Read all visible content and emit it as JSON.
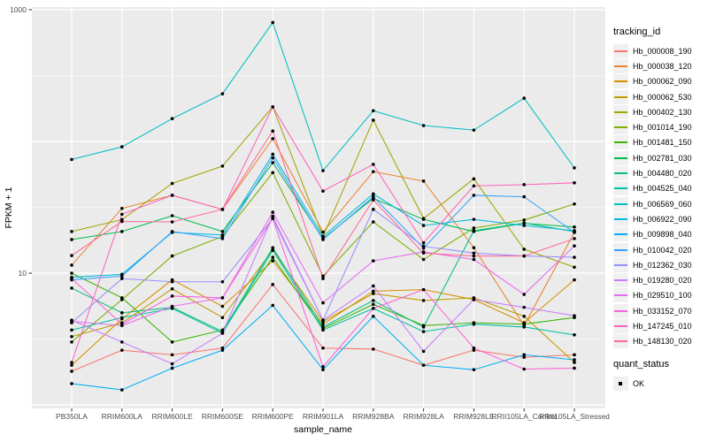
{
  "chart_data": {
    "type": "line",
    "title": "",
    "xlabel": "sample_name",
    "ylabel": "FPKM + 1",
    "yscale": "log10",
    "ylim": [
      1,
      1000
    ],
    "yticks": [
      {
        "value": 1000,
        "label": "1000"
      },
      {
        "value": 10,
        "label": "10"
      }
    ],
    "grid": "white major and minor gridlines on gray panel",
    "panel_bg": "#EBEBEB",
    "gridline_color": "#FFFFFF",
    "tick_color": "#333333",
    "tick_label_color": "#4D4D4D",
    "point_color": "#000000",
    "legend_position": "right",
    "legend_title": "tracking_id",
    "quant_legend": {
      "title": "quant_status",
      "items": [
        "OK"
      ]
    },
    "x": [
      "PB350LA",
      "RRIM600LA",
      "RRIM600LE",
      "RRIM600SE",
      "RRIM600PE",
      "RRIM901LA",
      "RRIM928BA",
      "RRIM928LA",
      "RRIM928LE",
      "RRII105LA_Control",
      "RRII105LA_Stressed"
    ],
    "series": [
      {
        "name": "Hb_000008_190",
        "color": "#F8766D",
        "values": [
          1.8,
          2.6,
          2.4,
          2.7,
          8.2,
          2.7,
          2.65,
          2.0,
          2.6,
          2.3,
          2.4
        ]
      },
      {
        "name": "Hb_000038_120",
        "color": "#EA8331",
        "values": [
          11.5,
          31,
          39,
          30.5,
          105,
          20.5,
          59,
          50,
          15.6,
          4.0,
          20.4
        ]
      },
      {
        "name": "Hb_000062_090",
        "color": "#D89000",
        "values": [
          2.0,
          4.5,
          8.9,
          5.6,
          12.4,
          4.1,
          7.3,
          7.5,
          6.3,
          4.2,
          8.9
        ]
      },
      {
        "name": "Hb_000062_530",
        "color": "#C09B00",
        "values": [
          3.3,
          4.2,
          7.6,
          4.6,
          15,
          4.3,
          7.0,
          6.2,
          6.5,
          4.7,
          2.1
        ]
      },
      {
        "name": "Hb_000402_130",
        "color": "#A3A500",
        "values": [
          20.7,
          25.5,
          48,
          65,
          183,
          19,
          145,
          26,
          52,
          15.2,
          11.1
        ]
      },
      {
        "name": "Hb_001014_190",
        "color": "#7CAE00",
        "values": [
          3.0,
          6.3,
          13.5,
          19,
          58,
          9.5,
          24.5,
          12.7,
          22,
          25.3,
          33.5
        ]
      },
      {
        "name": "Hb_001481_150",
        "color": "#39B600",
        "values": [
          10,
          6.5,
          3.0,
          3.7,
          13.2,
          3.8,
          5.8,
          4.0,
          4.2,
          4.1,
          4.6
        ]
      },
      {
        "name": "Hb_002781_030",
        "color": "#00BB4E",
        "values": [
          18,
          20.7,
          27.3,
          20.7,
          69,
          18.3,
          37,
          25.6,
          20.7,
          23.9,
          22.4
        ]
      },
      {
        "name": "Hb_004480_020",
        "color": "#00BF7D",
        "values": [
          7.7,
          5.0,
          5.5,
          3.6,
          15.6,
          3.9,
          6.2,
          3.9,
          21,
          24,
          20.7
        ]
      },
      {
        "name": "Hb_004525_040",
        "color": "#00C1A3",
        "values": [
          3.7,
          4.6,
          5.4,
          3.5,
          14.9,
          3.7,
          5.4,
          3.6,
          4.1,
          3.9,
          3.4
        ]
      },
      {
        "name": "Hb_006569_060",
        "color": "#00BFC4",
        "values": [
          73,
          91,
          149,
          230,
          800,
          60,
          171,
          132,
          122,
          213,
          63
        ]
      },
      {
        "name": "Hb_006922_090",
        "color": "#00BAE0",
        "values": [
          9.3,
          9.8,
          20.4,
          19.5,
          80,
          19,
          40,
          23,
          25.6,
          23,
          21
        ]
      },
      {
        "name": "Hb_009898_040",
        "color": "#00B0F6",
        "values": [
          1.45,
          1.3,
          1.9,
          2.6,
          5.7,
          1.85,
          4.7,
          2.0,
          1.85,
          2.4,
          2.2
        ]
      },
      {
        "name": "Hb_010042_020",
        "color": "#35A2FF",
        "values": [
          8.9,
          9.5,
          20.7,
          18.3,
          75,
          18,
          38,
          15.5,
          39,
          38,
          20.4
        ]
      },
      {
        "name": "Hb_012362_030",
        "color": "#9590FF",
        "values": [
          4.2,
          9.1,
          8.6,
          8.6,
          26,
          4.4,
          30.5,
          16,
          14.2,
          13.5,
          13.2
        ]
      },
      {
        "name": "Hb_019280_020",
        "color": "#C77CFF",
        "values": [
          4.4,
          3.0,
          2.05,
          3.5,
          27,
          4.4,
          8.0,
          2.55,
          6.3,
          5.5,
          4.75
        ]
      },
      {
        "name": "Hb_029510_100",
        "color": "#E76BF3",
        "values": [
          4.3,
          4.0,
          5.6,
          6.5,
          29,
          5.95,
          12.4,
          14.5,
          12.7,
          6.9,
          16.1
        ]
      },
      {
        "name": "Hb_033152_070",
        "color": "#FA62DB",
        "values": [
          9.1,
          4.1,
          6.7,
          6.5,
          26,
          1.95,
          5.4,
          7.5,
          2.7,
          1.87,
          1.9
        ]
      },
      {
        "name": "Hb_147245_010",
        "color": "#FF62BC",
        "values": [
          2.1,
          28,
          39,
          30.5,
          183,
          42,
          67,
          17,
          46,
          47,
          48.5
        ]
      },
      {
        "name": "Hb_148130_020",
        "color": "#FF6A98",
        "values": [
          13.6,
          24.7,
          24.5,
          30.5,
          120,
          9.1,
          36,
          14.2,
          13.5,
          13.5,
          18.3
        ]
      }
    ]
  }
}
